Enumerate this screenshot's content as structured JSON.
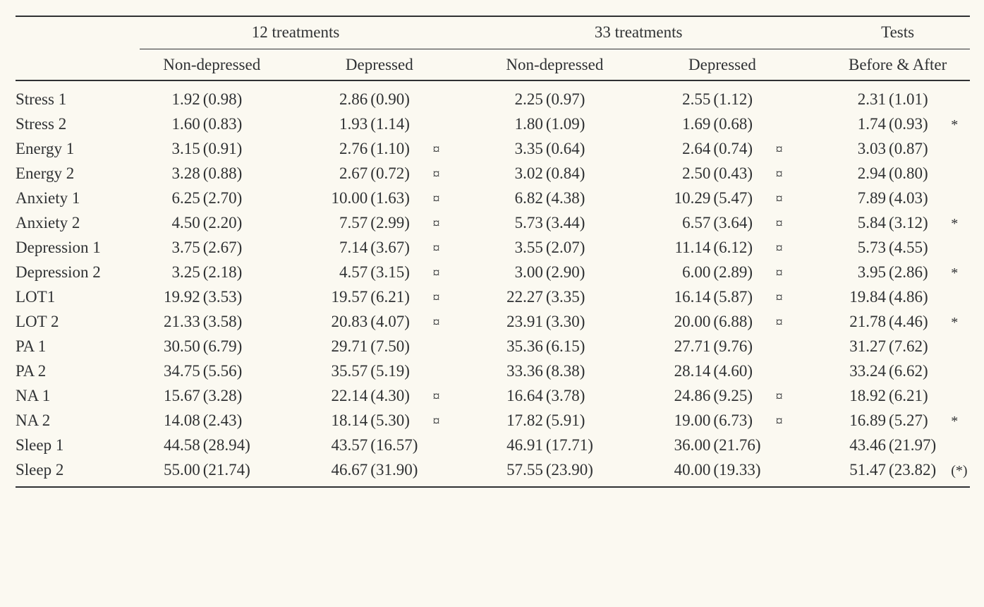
{
  "type": "table",
  "background_color": "#fbf9f1",
  "text_color": "#2f3133",
  "rule_color": "#2f3133",
  "font_family": "Times New Roman",
  "font_size_pt": 17,
  "sig_symbols": {
    "currency": "¤",
    "star": "*",
    "paren_star": "(*)"
  },
  "header": {
    "group_12": "12 treatments",
    "group_33": "33 treatments",
    "group_tests": "Tests",
    "sub_nd": "Non-depressed",
    "sub_d": "Depressed",
    "sub_ba": "Before & After"
  },
  "rows": [
    {
      "label": "Stress 1",
      "nd12_m": "1.92",
      "nd12_sd": "(0.98)",
      "nd12_sym": "",
      "d12_m": "2.86",
      "d12_sd": "(0.90)",
      "d12_sym": "",
      "nd33_m": "2.25",
      "nd33_sd": "(0.97)",
      "nd33_sym": "",
      "d33_m": "2.55",
      "d33_sd": "(1.12)",
      "d33_sym": "",
      "ba_m": "2.31",
      "ba_sd": "(1.01)",
      "ba_sym": ""
    },
    {
      "label": "Stress 2",
      "nd12_m": "1.60",
      "nd12_sd": "(0.83)",
      "nd12_sym": "",
      "d12_m": "1.93",
      "d12_sd": "(1.14)",
      "d12_sym": "",
      "nd33_m": "1.80",
      "nd33_sd": "(1.09)",
      "nd33_sym": "",
      "d33_m": "1.69",
      "d33_sd": "(0.68)",
      "d33_sym": "",
      "ba_m": "1.74",
      "ba_sd": "(0.93)",
      "ba_sym": "*"
    },
    {
      "label": "Energy 1",
      "nd12_m": "3.15",
      "nd12_sd": "(0.91)",
      "nd12_sym": "",
      "d12_m": "2.76",
      "d12_sd": "(1.10)",
      "d12_sym": "¤",
      "nd33_m": "3.35",
      "nd33_sd": "(0.64)",
      "nd33_sym": "",
      "d33_m": "2.64",
      "d33_sd": "(0.74)",
      "d33_sym": "¤",
      "ba_m": "3.03",
      "ba_sd": "(0.87)",
      "ba_sym": ""
    },
    {
      "label": "Energy 2",
      "nd12_m": "3.28",
      "nd12_sd": "(0.88)",
      "nd12_sym": "",
      "d12_m": "2.67",
      "d12_sd": "(0.72)",
      "d12_sym": "¤",
      "nd33_m": "3.02",
      "nd33_sd": "(0.84)",
      "nd33_sym": "",
      "d33_m": "2.50",
      "d33_sd": "(0.43)",
      "d33_sym": "¤",
      "ba_m": "2.94",
      "ba_sd": "(0.80)",
      "ba_sym": ""
    },
    {
      "label": "Anxiety 1",
      "nd12_m": "6.25",
      "nd12_sd": "(2.70)",
      "nd12_sym": "",
      "d12_m": "10.00",
      "d12_sd": "(1.63)",
      "d12_sym": "¤",
      "nd33_m": "6.82",
      "nd33_sd": "(4.38)",
      "nd33_sym": "",
      "d33_m": "10.29",
      "d33_sd": "(5.47)",
      "d33_sym": "¤",
      "ba_m": "7.89",
      "ba_sd": "(4.03)",
      "ba_sym": ""
    },
    {
      "label": "Anxiety 2",
      "nd12_m": "4.50",
      "nd12_sd": "(2.20)",
      "nd12_sym": "",
      "d12_m": "7.57",
      "d12_sd": "(2.99)",
      "d12_sym": "¤",
      "nd33_m": "5.73",
      "nd33_sd": "(3.44)",
      "nd33_sym": "",
      "d33_m": "6.57",
      "d33_sd": "(3.64)",
      "d33_sym": "¤",
      "ba_m": "5.84",
      "ba_sd": "(3.12)",
      "ba_sym": "*"
    },
    {
      "label": "Depression 1",
      "nd12_m": "3.75",
      "nd12_sd": "(2.67)",
      "nd12_sym": "",
      "d12_m": "7.14",
      "d12_sd": "(3.67)",
      "d12_sym": "¤",
      "nd33_m": "3.55",
      "nd33_sd": "(2.07)",
      "nd33_sym": "",
      "d33_m": "11.14",
      "d33_sd": "(6.12)",
      "d33_sym": "¤",
      "ba_m": "5.73",
      "ba_sd": "(4.55)",
      "ba_sym": ""
    },
    {
      "label": "Depression 2",
      "nd12_m": "3.25",
      "nd12_sd": "(2.18)",
      "nd12_sym": "",
      "d12_m": "4.57",
      "d12_sd": "(3.15)",
      "d12_sym": "¤",
      "nd33_m": "3.00",
      "nd33_sd": "(2.90)",
      "nd33_sym": "",
      "d33_m": "6.00",
      "d33_sd": "(2.89)",
      "d33_sym": "¤",
      "ba_m": "3.95",
      "ba_sd": "(2.86)",
      "ba_sym": "*"
    },
    {
      "label": "LOT1",
      "nd12_m": "19.92",
      "nd12_sd": "(3.53)",
      "nd12_sym": "",
      "d12_m": "19.57",
      "d12_sd": "(6.21)",
      "d12_sym": "¤",
      "nd33_m": "22.27",
      "nd33_sd": "(3.35)",
      "nd33_sym": "",
      "d33_m": "16.14",
      "d33_sd": "(5.87)",
      "d33_sym": "¤",
      "ba_m": "19.84",
      "ba_sd": "(4.86)",
      "ba_sym": ""
    },
    {
      "label": "LOT 2",
      "nd12_m": "21.33",
      "nd12_sd": "(3.58)",
      "nd12_sym": "",
      "d12_m": "20.83",
      "d12_sd": "(4.07)",
      "d12_sym": "¤",
      "nd33_m": "23.91",
      "nd33_sd": "(3.30)",
      "nd33_sym": "",
      "d33_m": "20.00",
      "d33_sd": "(6.88)",
      "d33_sym": "¤",
      "ba_m": "21.78",
      "ba_sd": "(4.46)",
      "ba_sym": "*"
    },
    {
      "label": "PA 1",
      "nd12_m": "30.50",
      "nd12_sd": "(6.79)",
      "nd12_sym": "",
      "d12_m": "29.71",
      "d12_sd": "(7.50)",
      "d12_sym": "",
      "nd33_m": "35.36",
      "nd33_sd": "(6.15)",
      "nd33_sym": "",
      "d33_m": "27.71",
      "d33_sd": "(9.76)",
      "d33_sym": "",
      "ba_m": "31.27",
      "ba_sd": "(7.62)",
      "ba_sym": ""
    },
    {
      "label": "PA 2",
      "nd12_m": "34.75",
      "nd12_sd": "(5.56)",
      "nd12_sym": "",
      "d12_m": "35.57",
      "d12_sd": "(5.19)",
      "d12_sym": "",
      "nd33_m": "33.36",
      "nd33_sd": "(8.38)",
      "nd33_sym": "",
      "d33_m": "28.14",
      "d33_sd": "(4.60)",
      "d33_sym": "",
      "ba_m": "33.24",
      "ba_sd": "(6.62)",
      "ba_sym": ""
    },
    {
      "label": "NA 1",
      "nd12_m": "15.67",
      "nd12_sd": "(3.28)",
      "nd12_sym": "",
      "d12_m": "22.14",
      "d12_sd": "(4.30)",
      "d12_sym": "¤",
      "nd33_m": "16.64",
      "nd33_sd": "(3.78)",
      "nd33_sym": "",
      "d33_m": "24.86",
      "d33_sd": "(9.25)",
      "d33_sym": "¤",
      "ba_m": "18.92",
      "ba_sd": "(6.21)",
      "ba_sym": ""
    },
    {
      "label": "NA 2",
      "nd12_m": "14.08",
      "nd12_sd": "(2.43)",
      "nd12_sym": "",
      "d12_m": "18.14",
      "d12_sd": "(5.30)",
      "d12_sym": "¤",
      "nd33_m": "17.82",
      "nd33_sd": "(5.91)",
      "nd33_sym": "",
      "d33_m": "19.00",
      "d33_sd": "(6.73)",
      "d33_sym": "¤",
      "ba_m": "16.89",
      "ba_sd": "(5.27)",
      "ba_sym": "*"
    },
    {
      "label": "Sleep 1",
      "nd12_m": "44.58",
      "nd12_sd": "(28.94)",
      "nd12_sym": "",
      "d12_m": "43.57",
      "d12_sd": "(16.57)",
      "d12_sym": "",
      "nd33_m": "46.91",
      "nd33_sd": "(17.71)",
      "nd33_sym": "",
      "d33_m": "36.00",
      "d33_sd": "(21.76)",
      "d33_sym": "",
      "ba_m": "43.46",
      "ba_sd": "(21.97)",
      "ba_sym": ""
    },
    {
      "label": "Sleep 2",
      "nd12_m": "55.00",
      "nd12_sd": "(21.74)",
      "nd12_sym": "",
      "d12_m": "46.67",
      "d12_sd": "(31.90)",
      "d12_sym": "",
      "nd33_m": "57.55",
      "nd33_sd": "(23.90)",
      "nd33_sym": "",
      "d33_m": "40.00",
      "d33_sd": "(19.33)",
      "d33_sym": "",
      "ba_m": "51.47",
      "ba_sd": "(23.82)",
      "ba_sym": "(*)"
    }
  ]
}
